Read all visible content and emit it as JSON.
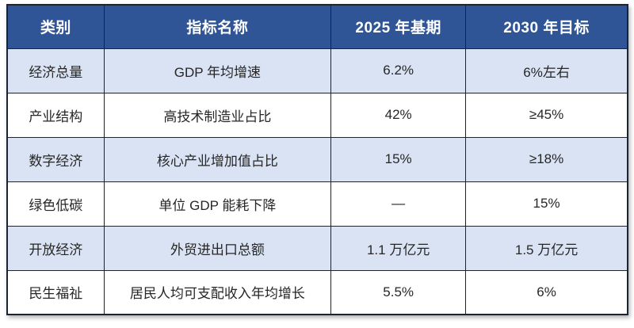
{
  "table": {
    "columns": [
      "类别",
      "指标名称",
      "2025 年基期",
      "2030 年目标"
    ],
    "rows": [
      {
        "cells": [
          "经济总量",
          "GDP 年均增速",
          "6.2%",
          "6%左右"
        ]
      },
      {
        "cells": [
          "产业结构",
          "高技术制造业占比",
          "42%",
          "≥45%"
        ]
      },
      {
        "cells": [
          "数字经济",
          "核心产业增加值占比",
          "15%",
          "≥18%"
        ]
      },
      {
        "cells": [
          "绿色低碳",
          "单位 GDP 能耗下降",
          "—",
          "15%"
        ]
      },
      {
        "cells": [
          "开放经济",
          "外贸进出口总额",
          "1.1 万亿元",
          "1.5 万亿元"
        ]
      },
      {
        "cells": [
          "民生福祉",
          "居民人均可支配收入年均增长",
          "5.5%",
          "6%"
        ]
      }
    ],
    "colors": {
      "header_bg": "#2F5597",
      "header_text": "#FFFFFF",
      "row_alt_bg": "#DAE3F3",
      "row_bg": "#FFFFFF",
      "border": "#1B2433",
      "text": "#262626"
    }
  }
}
